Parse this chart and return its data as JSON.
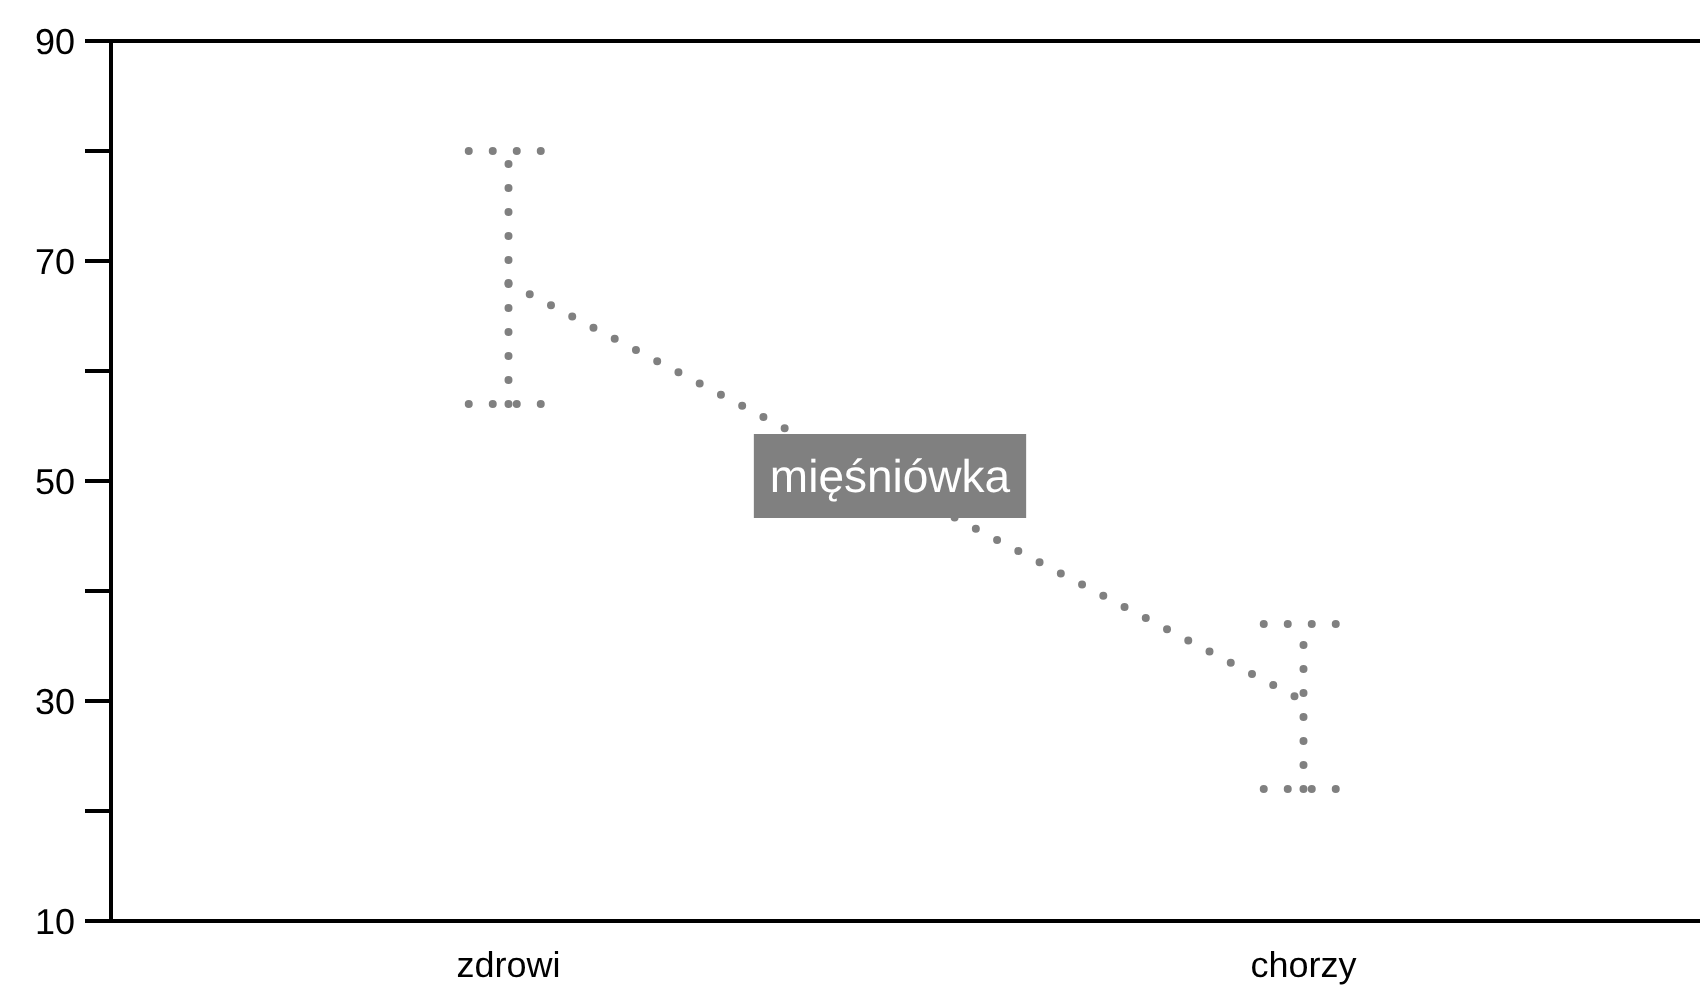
{
  "chart_data": {
    "type": "line",
    "categories": [
      "zdrowi",
      "chorzy"
    ],
    "ylim": [
      10,
      90
    ],
    "yticks": [
      10,
      {
        "value": 20,
        "label": null
      },
      30,
      {
        "value": 40,
        "label": null
      },
      50,
      {
        "value": 60,
        "label": null
      },
      70,
      {
        "value": 80,
        "label": null
      },
      90
    ],
    "line_style": "dotted",
    "series": [
      {
        "name": "mięśniówka",
        "color": "#808080",
        "values": [
          68,
          30
        ],
        "errors": [
          [
            57,
            80
          ],
          [
            22,
            37
          ]
        ]
      }
    ]
  }
}
